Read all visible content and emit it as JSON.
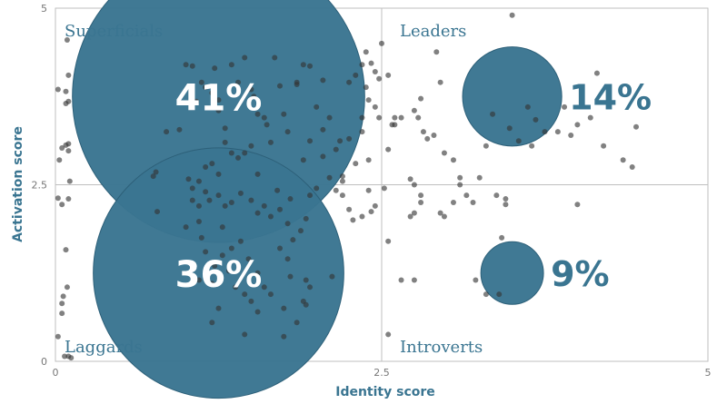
{
  "chart_data": {
    "type": "scatter",
    "xlabel": "Identity score",
    "ylabel": "Activation score",
    "xlim": [
      0,
      5
    ],
    "ylim": [
      0,
      5
    ],
    "x_ticks": [
      "0",
      "2.5",
      "5"
    ],
    "y_ticks": [
      "0",
      "2.5",
      "5"
    ],
    "dividers": {
      "x": 2.5,
      "y": 2.5
    },
    "grid": false,
    "colors": {
      "bubble": "#3a7591",
      "accent_text": "#3a7591",
      "point": "#333333",
      "frame": "#bfbfbf"
    },
    "quadrants": [
      {
        "label": "Superficials",
        "share": "41%",
        "center": [
          1.25,
          3.75
        ],
        "r": 1.12
      },
      {
        "label": "Leaders",
        "share": "14%",
        "center": [
          3.5,
          3.75
        ],
        "r": 0.38
      },
      {
        "label": "Laggards",
        "share": "36%",
        "center": [
          1.25,
          1.25
        ],
        "r": 0.96
      },
      {
        "label": "Introverts",
        "share": "9%",
        "center": [
          3.5,
          1.25
        ],
        "r": 0.24
      }
    ],
    "points": [
      [
        0.02,
        3.85
      ],
      [
        0.08,
        3.82
      ],
      [
        0.08,
        3.65
      ],
      [
        0.1,
        3.68
      ],
      [
        0.05,
        3.02
      ],
      [
        0.08,
        3.06
      ],
      [
        0.1,
        2.98
      ],
      [
        0.1,
        3.08
      ],
      [
        0.03,
        2.85
      ],
      [
        0.1,
        4.05
      ],
      [
        0.09,
        4.55
      ],
      [
        0.11,
        2.55
      ],
      [
        0.02,
        2.31
      ],
      [
        0.05,
        2.22
      ],
      [
        0.1,
        2.3
      ],
      [
        0.08,
        1.58
      ],
      [
        0.09,
        1.05
      ],
      [
        0.06,
        0.92
      ],
      [
        0.05,
        0.82
      ],
      [
        0.05,
        0.68
      ],
      [
        0.02,
        0.35
      ],
      [
        0.07,
        0.07
      ],
      [
        0.1,
        0.07
      ],
      [
        0.12,
        0.05
      ],
      [
        0.75,
        2.62
      ],
      [
        0.77,
        2.68
      ],
      [
        0.78,
        2.12
      ],
      [
        0.85,
        3.25
      ],
      [
        0.95,
        3.28
      ],
      [
        1.0,
        4.2
      ],
      [
        1.05,
        4.18
      ],
      [
        1.08,
        3.68
      ],
      [
        1.12,
        3.95
      ],
      [
        1.15,
        3.88
      ],
      [
        1.2,
        3.8
      ],
      [
        1.22,
        4.15
      ],
      [
        1.25,
        3.55
      ],
      [
        1.25,
        3.7
      ],
      [
        1.3,
        3.3
      ],
      [
        1.35,
        4.2
      ],
      [
        1.4,
        3.95
      ],
      [
        1.45,
        4.3
      ],
      [
        1.5,
        3.85
      ],
      [
        1.52,
        3.75
      ],
      [
        1.55,
        3.5
      ],
      [
        1.6,
        3.45
      ],
      [
        1.62,
        3.35
      ],
      [
        1.65,
        3.1
      ],
      [
        1.68,
        4.3
      ],
      [
        1.72,
        3.9
      ],
      [
        1.75,
        3.5
      ],
      [
        1.78,
        3.25
      ],
      [
        1.85,
        3.95
      ],
      [
        1.3,
        3.1
      ],
      [
        1.35,
        2.95
      ],
      [
        1.4,
        2.88
      ],
      [
        1.15,
        2.75
      ],
      [
        1.2,
        2.8
      ],
      [
        1.45,
        2.95
      ],
      [
        1.5,
        3.05
      ],
      [
        1.55,
        2.65
      ],
      [
        1.25,
        2.65
      ],
      [
        1.1,
        2.55
      ],
      [
        1.05,
        2.45
      ],
      [
        1.02,
        2.58
      ],
      [
        1.05,
        2.28
      ],
      [
        1.1,
        2.2
      ],
      [
        1.15,
        2.4
      ],
      [
        1.18,
        2.28
      ],
      [
        1.25,
        2.35
      ],
      [
        1.3,
        2.2
      ],
      [
        1.35,
        2.25
      ],
      [
        1.42,
        2.38
      ],
      [
        1.5,
        2.28
      ],
      [
        1.55,
        2.1
      ],
      [
        1.6,
        2.2
      ],
      [
        1.65,
        2.05
      ],
      [
        1.72,
        2.15
      ],
      [
        1.78,
        1.95
      ],
      [
        1.82,
        1.72
      ],
      [
        1.88,
        1.85
      ],
      [
        1.92,
        2.02
      ],
      [
        1.8,
        2.3
      ],
      [
        1.7,
        2.42
      ],
      [
        1.0,
        1.9
      ],
      [
        1.12,
        1.75
      ],
      [
        1.15,
        1.55
      ],
      [
        1.22,
        1.35
      ],
      [
        1.28,
        1.5
      ],
      [
        1.35,
        1.6
      ],
      [
        1.42,
        1.7
      ],
      [
        1.48,
        1.45
      ],
      [
        1.55,
        1.25
      ],
      [
        1.6,
        1.05
      ],
      [
        1.65,
        0.95
      ],
      [
        1.75,
        0.75
      ],
      [
        1.8,
        1.2
      ],
      [
        1.1,
        1.15
      ],
      [
        1.2,
        1.1
      ],
      [
        1.33,
        1.28
      ],
      [
        1.38,
        1.05
      ],
      [
        1.45,
        0.95
      ],
      [
        1.5,
        0.85
      ],
      [
        1.55,
        0.7
      ],
      [
        1.72,
        1.6
      ],
      [
        1.78,
        1.45
      ],
      [
        1.9,
        0.85
      ],
      [
        1.85,
        0.55
      ],
      [
        1.75,
        0.35
      ],
      [
        1.45,
        0.38
      ],
      [
        1.2,
        0.55
      ],
      [
        1.25,
        0.75
      ],
      [
        1.28,
        1.9
      ],
      [
        1.1,
        1.98
      ],
      [
        1.85,
        3.92
      ],
      [
        1.9,
        4.2
      ],
      [
        1.95,
        4.18
      ],
      [
        2.05,
        3.98
      ],
      [
        2.0,
        3.6
      ],
      [
        2.05,
        2.9
      ],
      [
        2.1,
        2.6
      ],
      [
        2.15,
        2.42
      ],
      [
        2.2,
        2.62
      ],
      [
        2.2,
        2.35
      ],
      [
        2.25,
        2.15
      ],
      [
        2.28,
        2.0
      ],
      [
        2.2,
        2.55
      ],
      [
        2.3,
        2.8
      ],
      [
        2.35,
        3.25
      ],
      [
        2.4,
        2.85
      ],
      [
        2.4,
        2.42
      ],
      [
        2.45,
        2.2
      ],
      [
        2.42,
        2.12
      ],
      [
        2.35,
        2.05
      ],
      [
        2.25,
        3.95
      ],
      [
        2.3,
        4.05
      ],
      [
        2.35,
        4.2
      ],
      [
        2.38,
        4.38
      ],
      [
        2.42,
        4.22
      ],
      [
        2.45,
        4.1
      ],
      [
        2.48,
        4.0
      ],
      [
        2.38,
        3.88
      ],
      [
        2.4,
        3.7
      ],
      [
        2.45,
        3.6
      ],
      [
        2.48,
        3.45
      ],
      [
        2.1,
        3.45
      ],
      [
        2.15,
        3.0
      ],
      [
        2.18,
        3.12
      ],
      [
        2.25,
        3.15
      ],
      [
        2.35,
        3.45
      ],
      [
        2.05,
        3.28
      ],
      [
        1.95,
        3.12
      ],
      [
        1.9,
        2.85
      ],
      [
        2.0,
        2.45
      ],
      [
        1.95,
        2.35
      ],
      [
        1.92,
        1.15
      ],
      [
        1.95,
        1.05
      ],
      [
        1.92,
        0.8
      ],
      [
        2.12,
        1.2
      ],
      [
        2.5,
        4.5
      ],
      [
        2.55,
        4.05
      ],
      [
        2.58,
        3.35
      ],
      [
        2.6,
        3.45
      ],
      [
        2.65,
        3.45
      ],
      [
        2.55,
        3.0
      ],
      [
        2.52,
        2.45
      ],
      [
        2.55,
        1.7
      ],
      [
        2.55,
        0.38
      ],
      [
        2.6,
        3.35
      ],
      [
        2.75,
        3.55
      ],
      [
        2.8,
        3.72
      ],
      [
        2.78,
        3.45
      ],
      [
        2.82,
        3.25
      ],
      [
        2.85,
        3.15
      ],
      [
        2.9,
        3.2
      ],
      [
        2.92,
        4.38
      ],
      [
        2.95,
        3.95
      ],
      [
        2.98,
        2.95
      ],
      [
        3.05,
        2.85
      ],
      [
        3.1,
        2.6
      ],
      [
        2.72,
        2.58
      ],
      [
        2.75,
        2.5
      ],
      [
        2.8,
        2.35
      ],
      [
        2.8,
        2.25
      ],
      [
        2.75,
        2.1
      ],
      [
        2.72,
        2.05
      ],
      [
        2.95,
        2.1
      ],
      [
        2.98,
        2.05
      ],
      [
        3.05,
        2.25
      ],
      [
        3.1,
        2.5
      ],
      [
        3.15,
        2.35
      ],
      [
        3.2,
        2.25
      ],
      [
        3.25,
        2.6
      ],
      [
        3.3,
        3.05
      ],
      [
        3.35,
        3.5
      ],
      [
        3.38,
        2.35
      ],
      [
        3.45,
        2.3
      ],
      [
        3.45,
        2.22
      ],
      [
        3.22,
        1.15
      ],
      [
        3.3,
        0.95
      ],
      [
        3.4,
        0.95
      ],
      [
        3.42,
        1.75
      ],
      [
        2.65,
        1.15
      ],
      [
        2.75,
        1.15
      ],
      [
        3.5,
        4.9
      ],
      [
        3.48,
        3.3
      ],
      [
        3.62,
        3.6
      ],
      [
        3.68,
        3.42
      ],
      [
        3.75,
        3.25
      ],
      [
        3.85,
        3.25
      ],
      [
        3.9,
        3.6
      ],
      [
        3.95,
        3.2
      ],
      [
        4.0,
        3.35
      ],
      [
        4.1,
        3.45
      ],
      [
        4.15,
        4.08
      ],
      [
        4.2,
        3.05
      ],
      [
        4.35,
        2.85
      ],
      [
        4.42,
        2.75
      ],
      [
        4.45,
        3.32
      ],
      [
        4.0,
        2.22
      ],
      [
        3.65,
        3.05
      ],
      [
        3.55,
        3.12
      ]
    ]
  }
}
